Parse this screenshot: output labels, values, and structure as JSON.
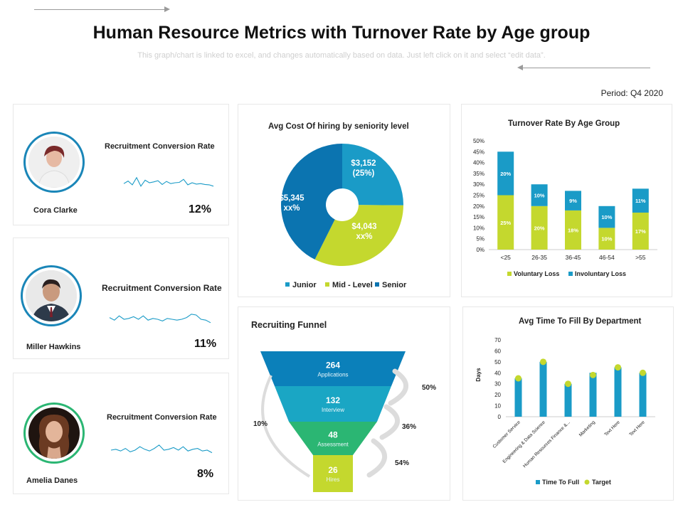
{
  "header": {
    "title": "Human Resource Metrics with Turnover Rate by Age group",
    "subtitle": "This graph/chart is linked to excel, and changes automatically based on data. Just left click on it and select “edit data”.",
    "period": "Period: Q4 2020"
  },
  "people": [
    {
      "name": "Cora Clarke",
      "label": "Recruitment Conversion Rate",
      "value": "12%",
      "ring": "#1a86b8",
      "spark": [
        0.55,
        0.4,
        0.62,
        0.2,
        0.7,
        0.35,
        0.5,
        0.45,
        0.38,
        0.6,
        0.42,
        0.55,
        0.5,
        0.48,
        0.3,
        0.62,
        0.5,
        0.58,
        0.55,
        0.6,
        0.62,
        0.7
      ]
    },
    {
      "name": "Miller Hawkins",
      "label": "Recruitment Conversion Rate",
      "value": "11%",
      "ring": "#1a86b8",
      "spark": [
        0.4,
        0.55,
        0.3,
        0.5,
        0.45,
        0.35,
        0.5,
        0.3,
        0.55,
        0.45,
        0.5,
        0.6,
        0.45,
        0.5,
        0.55,
        0.5,
        0.4,
        0.2,
        0.25,
        0.5,
        0.55,
        0.7
      ]
    },
    {
      "name": "Amelia Danes",
      "label": "Recruitment Conversion Rate",
      "value": "8%",
      "ring": "#2bb673",
      "spark": [
        0.5,
        0.45,
        0.55,
        0.4,
        0.6,
        0.5,
        0.3,
        0.45,
        0.55,
        0.4,
        0.2,
        0.5,
        0.45,
        0.35,
        0.5,
        0.3,
        0.55,
        0.45,
        0.4,
        0.55,
        0.5,
        0.65
      ]
    }
  ],
  "chart_data": [
    {
      "type": "pie",
      "title": "Avg Cost Of hiring by seniority level",
      "slices": [
        {
          "name": "Junior",
          "value": 3152,
          "label": "$3,152",
          "pct_label": "(25%)",
          "color": "#1a9bc7"
        },
        {
          "name": "Mid - Level",
          "value": 4043,
          "label": "$4,043",
          "pct_label": "xx%",
          "color": "#c4d82e"
        },
        {
          "name": "Senior",
          "value": 5345,
          "label": "$5,345",
          "pct_label": "xx%",
          "color": "#0b74b0"
        }
      ],
      "legend": [
        "Junior",
        "Mid - Level",
        "Senior"
      ]
    },
    {
      "type": "bar",
      "stacked": true,
      "title": "Turnover Rate By Age Group",
      "categories": [
        "<25",
        "26-35",
        "36-45",
        "46-54",
        ">55"
      ],
      "series": [
        {
          "name": "Voluntary Loss",
          "values": [
            25,
            20,
            18,
            10,
            17
          ],
          "labels": [
            "25%",
            "20%",
            "18%",
            "10%",
            "17%"
          ],
          "color": "#c4d82e"
        },
        {
          "name": "Involuntary Loss",
          "values": [
            20,
            10,
            9,
            10,
            11
          ],
          "labels": [
            "20%",
            "10%",
            "9%",
            "10%",
            "11%"
          ],
          "color": "#1a9bc7"
        }
      ],
      "ylim": [
        0,
        50
      ],
      "yticks": [
        "0%",
        "5%",
        "10%",
        "15%",
        "20%",
        "25%",
        "30%",
        "35%",
        "40%",
        "45%",
        "50%"
      ]
    },
    {
      "type": "funnel",
      "title": "Recruiting Funnel",
      "stages": [
        {
          "value": "264",
          "label": "Applications",
          "color": "#0b80ba"
        },
        {
          "value": "132",
          "label": "Interview",
          "color": "#1aa6c4"
        },
        {
          "value": "48",
          "label": "Assessment",
          "color": "#2bb673"
        },
        {
          "value": "26",
          "label": "Hires",
          "color": "#c4d82e"
        }
      ],
      "conversions": [
        "50%",
        "36%",
        "54%"
      ],
      "overall": "10%"
    },
    {
      "type": "bar",
      "title": "Avg Time To Fill By Department",
      "ylabel": "Days",
      "categories": [
        "Customer Service",
        "Engineering & Data Science",
        "Human Resources Finance &...",
        "Marketing",
        "Text Here",
        "Text Here"
      ],
      "series": [
        {
          "name": "Time To Full",
          "values": [
            35,
            50,
            30,
            40,
            45,
            40
          ],
          "color": "#1a9bc7"
        },
        {
          "name": "Target",
          "values": [
            35,
            50,
            30,
            38,
            45,
            40
          ],
          "color": "#c4d82e"
        }
      ],
      "ylim": [
        0,
        70
      ],
      "yticks": [
        "0",
        "10",
        "20",
        "30",
        "40",
        "50",
        "60",
        "70"
      ]
    }
  ]
}
